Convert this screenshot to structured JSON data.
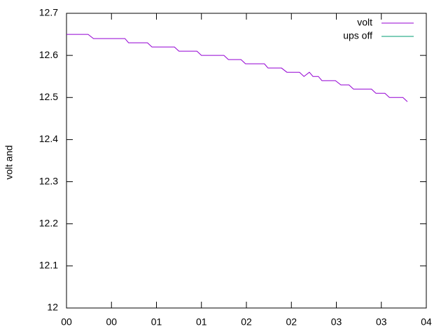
{
  "chart_data": {
    "type": "line",
    "y_label": "volt and",
    "x": [
      0,
      0.24,
      0.3,
      0.65,
      0.69,
      0.9,
      0.95,
      1.2,
      1.25,
      1.45,
      1.5,
      1.75,
      1.8,
      1.94,
      1.99,
      2.2,
      2.24,
      2.39,
      2.45,
      2.59,
      2.64,
      2.7,
      2.74,
      2.8,
      2.84,
      2.99,
      3.05,
      3.14,
      3.19,
      3.39,
      3.44,
      3.54,
      3.59,
      3.74,
      3.79
    ],
    "series": [
      {
        "name": "volt",
        "color": "#9400d3",
        "values": [
          12.65,
          12.65,
          12.64,
          12.64,
          12.63,
          12.63,
          12.62,
          12.62,
          12.61,
          12.61,
          12.6,
          12.6,
          12.59,
          12.59,
          12.58,
          12.58,
          12.57,
          12.57,
          12.56,
          12.56,
          12.55,
          12.56,
          12.55,
          12.55,
          12.54,
          12.54,
          12.53,
          12.53,
          12.52,
          12.52,
          12.51,
          12.51,
          12.5,
          12.5,
          12.49
        ]
      },
      {
        "name": "ups off",
        "color": "#009e73",
        "values": [
          null,
          null,
          null,
          null,
          null,
          null,
          null,
          null,
          null,
          null,
          null,
          null,
          null,
          null,
          null,
          null,
          null,
          null,
          null,
          null,
          null,
          null,
          null,
          null,
          null,
          null,
          null,
          null,
          null,
          null,
          null,
          null,
          null,
          null,
          null
        ]
      }
    ],
    "xlim": [
      0,
      4
    ],
    "xticks": [
      {
        "value": 0,
        "label": "00"
      },
      {
        "value": 0.5,
        "label": "00"
      },
      {
        "value": 1,
        "label": "01"
      },
      {
        "value": 1.5,
        "label": "01"
      },
      {
        "value": 2,
        "label": "02"
      },
      {
        "value": 2.5,
        "label": "02"
      },
      {
        "value": 3,
        "label": "03"
      },
      {
        "value": 3.5,
        "label": "03"
      },
      {
        "value": 4,
        "label": "04"
      }
    ],
    "ylim": [
      12,
      12.7
    ],
    "yticks": [
      12,
      12.1,
      12.2,
      12.3,
      12.4,
      12.5,
      12.6,
      12.7
    ],
    "legend": "top-right"
  }
}
